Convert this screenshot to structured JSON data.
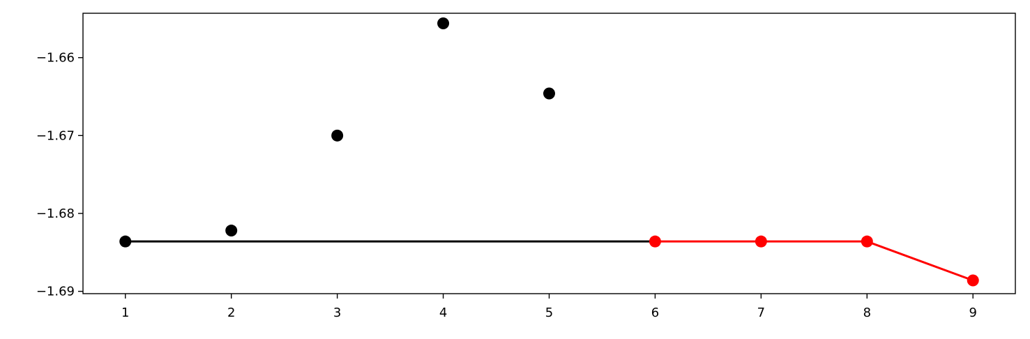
{
  "chart_data": {
    "type": "scatter",
    "title": "",
    "xlabel": "",
    "ylabel": "",
    "xlim": [
      0.6,
      9.4
    ],
    "ylim": [
      -1.6903,
      -1.6543
    ],
    "grid": false,
    "x_ticks": [
      1,
      2,
      3,
      4,
      5,
      6,
      7,
      8,
      9
    ],
    "x_tick_labels": [
      "1",
      "2",
      "3",
      "4",
      "5",
      "6",
      "7",
      "8",
      "9"
    ],
    "y_ticks": [
      -1.66,
      -1.67,
      -1.68,
      -1.69
    ],
    "y_tick_labels": [
      "−1.66",
      "−1.67",
      "−1.68",
      "−1.69"
    ],
    "series": [
      {
        "style": "markers",
        "color": "#000000",
        "points": [
          {
            "x": 1,
            "y": -1.6836
          },
          {
            "x": 2,
            "y": -1.6822
          },
          {
            "x": 3,
            "y": -1.67
          },
          {
            "x": 4,
            "y": -1.6556
          },
          {
            "x": 5,
            "y": -1.6646
          }
        ]
      },
      {
        "style": "line",
        "color": "#000000",
        "points": [
          {
            "x": 1,
            "y": -1.6836
          },
          {
            "x": 6,
            "y": -1.6836
          }
        ]
      },
      {
        "style": "line+markers",
        "color": "#ff0000",
        "points": [
          {
            "x": 6,
            "y": -1.6836
          },
          {
            "x": 7,
            "y": -1.6836
          },
          {
            "x": 8,
            "y": -1.6836
          },
          {
            "x": 9,
            "y": -1.6886
          }
        ]
      }
    ]
  }
}
